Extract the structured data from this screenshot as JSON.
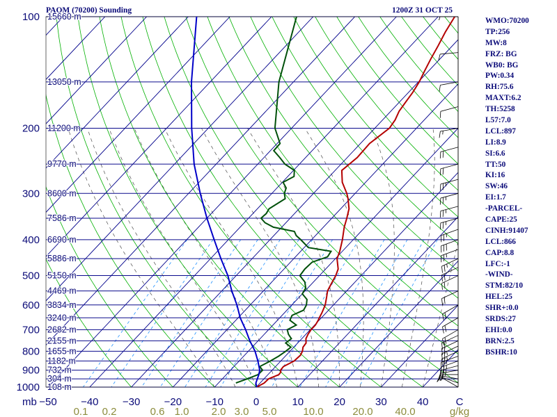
{
  "header": {
    "station_title": "PAOM (70200) Sounding",
    "time_title": "1200Z 31 OCT 25"
  },
  "indices": [
    "WMO:70200",
    "TP:256",
    "MW:8",
    "FRZ: BG",
    "WB0: BG",
    "PW:0.34",
    "RH:75.6",
    "MAXT:6.2",
    "TH:5258",
    "L57:7.0",
    "LCL:897",
    "LI:8.9",
    "SI:6.6",
    "TT:50",
    "KI:16",
    "SW:46",
    "EI:1.7",
    "-PARCEL-",
    "CAPE:25",
    "CINH:91407",
    "LCL:866",
    "CAP:8.8",
    "LFC:-1",
    "-WIND-",
    "STM:82/10",
    "HEL:25",
    "SHR+:0.0",
    "SRDS:27",
    "EHI:0.0",
    "BRN:2.5",
    "BSHR:10"
  ],
  "colors": {
    "isobar": "#0a0a8c",
    "isotherm": "#00008b",
    "dry_adiabat": "#00b000",
    "moist_adiabat": "#4b4b4b",
    "mixing_ratio": "#1e90ff",
    "temperature": "#b40000",
    "dewpoint": "#00500a",
    "parcel": "#0000c8",
    "label": "#0a0a78",
    "mixing_label": "#8c8c3c"
  },
  "chart_data": {
    "type": "skew-t log-p",
    "title": "PAOM (70200) Sounding",
    "pressure_unit": "mb",
    "pressure_levels": [
      100,
      200,
      300,
      400,
      500,
      600,
      700,
      800,
      900,
      1000
    ],
    "height_labels": [
      {
        "p": 100,
        "text": "15660 m"
      },
      {
        "p": 150,
        "text": "13050 m"
      },
      {
        "p": 200,
        "text": "11200 m"
      },
      {
        "p": 250,
        "text": "9770 m"
      },
      {
        "p": 300,
        "text": "8600 m"
      },
      {
        "p": 350,
        "text": "7586 m"
      },
      {
        "p": 400,
        "text": "6690 m"
      },
      {
        "p": 450,
        "text": "5886 m"
      },
      {
        "p": 500,
        "text": "5150 m"
      },
      {
        "p": 550,
        "text": "4469 m"
      },
      {
        "p": 600,
        "text": "3834 m"
      },
      {
        "p": 650,
        "text": "3240 m"
      },
      {
        "p": 700,
        "text": "2682 m"
      },
      {
        "p": 750,
        "text": "2155 m"
      },
      {
        "p": 800,
        "text": "1655 m"
      },
      {
        "p": 850,
        "text": "1182 m"
      },
      {
        "p": 900,
        "text": "732 m"
      },
      {
        "p": 950,
        "text": "304 m"
      },
      {
        "p": 1000,
        "text": "108 m"
      }
    ],
    "temp_ticks": [
      -50,
      -40,
      -30,
      -20,
      -10,
      0,
      10,
      20,
      30,
      40
    ],
    "temp_unit": "C",
    "mixing_ratio_labels": [
      {
        "w": 0.1,
        "text": "0.1"
      },
      {
        "w": 0.2,
        "text": "0.2"
      },
      {
        "w": 0.6,
        "text": "0.6"
      },
      {
        "w": 1.0,
        "text": "1.0"
      },
      {
        "w": 2.0,
        "text": "2.0"
      },
      {
        "w": 3.0,
        "text": "3.0"
      },
      {
        "w": 5.0,
        "text": "5.0"
      },
      {
        "w": 10.0,
        "text": "10.0"
      },
      {
        "w": 20.0,
        "text": "20.0"
      },
      {
        "w": 40.0,
        "text": "40.0"
      }
    ],
    "mixing_ratio_unit": "g/kg",
    "isotherm_range": [
      -140,
      50
    ],
    "dry_adiabat_thetas": [
      -30,
      -20,
      -10,
      0,
      10,
      20,
      30,
      40,
      50,
      60,
      70,
      80,
      90,
      100,
      110,
      120,
      130,
      140,
      150,
      160,
      170,
      180,
      190
    ],
    "moist_adiabat_starts": [
      -10,
      -5,
      0,
      5,
      10,
      15,
      20,
      25,
      30,
      35,
      40
    ],
    "mixing_ratio_lines": [
      0.1,
      0.2,
      0.4,
      0.6,
      1.0,
      1.5,
      2.0,
      3.0,
      5.0,
      8.0,
      12.0,
      16.0,
      20.0
    ],
    "series": [
      {
        "name": "Temperature",
        "points": [
          [
            1000,
            0.1
          ],
          [
            975,
            1.0
          ],
          [
            950,
            1.1
          ],
          [
            925,
            2.6
          ],
          [
            910,
            2.5
          ],
          [
            900,
            2.0
          ],
          [
            880,
            1.9
          ],
          [
            850,
            3.2
          ],
          [
            820,
            3.4
          ],
          [
            800,
            3.0
          ],
          [
            780,
            2.2
          ],
          [
            760,
            2.0
          ],
          [
            740,
            1.0
          ],
          [
            720,
            0.5
          ],
          [
            700,
            0.2
          ],
          [
            680,
            0.2
          ],
          [
            660,
            -0.2
          ],
          [
            650,
            -0.5
          ],
          [
            630,
            -1.0
          ],
          [
            600,
            -2.0
          ],
          [
            570,
            -3.5
          ],
          [
            550,
            -4.6
          ],
          [
            530,
            -5.2
          ],
          [
            500,
            -6.1
          ],
          [
            480,
            -7.0
          ],
          [
            450,
            -9.6
          ],
          [
            430,
            -10.6
          ],
          [
            400,
            -12.6
          ],
          [
            370,
            -15.0
          ],
          [
            350,
            -16.4
          ],
          [
            330,
            -18.0
          ],
          [
            310,
            -20.5
          ],
          [
            300,
            -22.0
          ],
          [
            280,
            -25.6
          ],
          [
            260,
            -28.4
          ],
          [
            250,
            -28.0
          ],
          [
            240,
            -27.6
          ],
          [
            220,
            -27.8
          ],
          [
            200,
            -26.5
          ],
          [
            190,
            -27.0
          ],
          [
            180,
            -28.0
          ],
          [
            170,
            -28.5
          ],
          [
            160,
            -29.0
          ],
          [
            150,
            -29.8
          ],
          [
            140,
            -31.0
          ],
          [
            130,
            -32.2
          ],
          [
            120,
            -33.4
          ],
          [
            110,
            -34.8
          ],
          [
            100,
            -36.0
          ]
        ]
      },
      {
        "name": "Dewpoint",
        "points": [
          [
            975,
            -5.8
          ],
          [
            950,
            -4.0
          ],
          [
            925,
            -2.4
          ],
          [
            900,
            -2.3
          ],
          [
            880,
            -3.8
          ],
          [
            850,
            -2.5
          ],
          [
            825,
            -1.6
          ],
          [
            800,
            -1.0
          ],
          [
            780,
            -0.7
          ],
          [
            760,
            -2.9
          ],
          [
            740,
            -2.5
          ],
          [
            720,
            -4.2
          ],
          [
            700,
            -5.5
          ],
          [
            680,
            -4.4
          ],
          [
            660,
            -7.0
          ],
          [
            640,
            -7.6
          ],
          [
            620,
            -6.0
          ],
          [
            600,
            -6.5
          ],
          [
            580,
            -7.6
          ],
          [
            560,
            -10.0
          ],
          [
            540,
            -10.5
          ],
          [
            520,
            -12.1
          ],
          [
            500,
            -14.7
          ],
          [
            480,
            -15.0
          ],
          [
            460,
            -14.8
          ],
          [
            445,
            -12.3
          ],
          [
            430,
            -12.7
          ],
          [
            420,
            -19.0
          ],
          [
            400,
            -22.6
          ],
          [
            390,
            -24.6
          ],
          [
            380,
            -26.0
          ],
          [
            370,
            -32.0
          ],
          [
            360,
            -35.0
          ],
          [
            350,
            -37.0
          ],
          [
            340,
            -36.8
          ],
          [
            330,
            -37.2
          ],
          [
            310,
            -35.6
          ],
          [
            300,
            -37.0
          ],
          [
            290,
            -37.8
          ],
          [
            280,
            -39.8
          ],
          [
            270,
            -38.5
          ],
          [
            260,
            -39.8
          ],
          [
            250,
            -43.5
          ],
          [
            240,
            -46.2
          ],
          [
            230,
            -49.2
          ],
          [
            220,
            -49.3
          ],
          [
            200,
            -54.0
          ],
          [
            150,
            -63.5
          ],
          [
            100,
            -74.0
          ]
        ]
      },
      {
        "name": "Parcel",
        "points": [
          [
            1000,
            0.1
          ],
          [
            975,
            -1.0
          ],
          [
            950,
            -1.6
          ],
          [
            925,
            -2.2
          ],
          [
            900,
            -3.0
          ],
          [
            850,
            -5.5
          ],
          [
            800,
            -8.4
          ],
          [
            750,
            -12.0
          ],
          [
            700,
            -15.5
          ],
          [
            650,
            -19.5
          ],
          [
            600,
            -23.2
          ],
          [
            550,
            -27.6
          ],
          [
            500,
            -32.0
          ],
          [
            450,
            -37.5
          ],
          [
            400,
            -43.4
          ],
          [
            350,
            -50.0
          ],
          [
            300,
            -57.2
          ],
          [
            250,
            -65.3
          ],
          [
            200,
            -74.0
          ],
          [
            150,
            -84.5
          ],
          [
            100,
            -98.0
          ]
        ]
      }
    ],
    "wind_barbs": [
      [
        1000,
        300,
        5
      ],
      [
        975,
        290,
        10
      ],
      [
        950,
        280,
        15
      ],
      [
        925,
        270,
        20
      ],
      [
        900,
        260,
        25
      ],
      [
        875,
        255,
        25
      ],
      [
        850,
        250,
        25
      ],
      [
        825,
        250,
        25
      ],
      [
        800,
        245,
        25
      ],
      [
        775,
        245,
        25
      ],
      [
        750,
        245,
        20
      ],
      [
        725,
        245,
        20
      ],
      [
        700,
        240,
        20
      ],
      [
        650,
        240,
        20
      ],
      [
        600,
        240,
        20
      ],
      [
        550,
        245,
        20
      ],
      [
        500,
        245,
        20
      ],
      [
        475,
        245,
        20
      ],
      [
        450,
        245,
        25
      ],
      [
        425,
        250,
        25
      ],
      [
        400,
        250,
        30
      ],
      [
        375,
        250,
        25
      ],
      [
        350,
        255,
        25
      ],
      [
        325,
        255,
        25
      ],
      [
        300,
        255,
        25
      ],
      [
        275,
        255,
        25
      ],
      [
        250,
        255,
        20
      ],
      [
        225,
        255,
        20
      ],
      [
        200,
        260,
        15
      ],
      [
        175,
        255,
        10
      ],
      [
        150,
        260,
        10
      ],
      [
        125,
        265,
        10
      ],
      [
        100,
        270,
        5
      ]
    ]
  }
}
